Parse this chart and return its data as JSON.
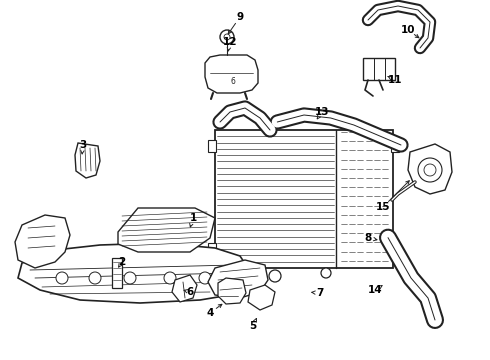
{
  "background_color": "#ffffff",
  "line_color": "#222222",
  "label_color": "#000000",
  "figsize": [
    4.9,
    3.6
  ],
  "dpi": 100,
  "labels": [
    [
      "1",
      193,
      218
    ],
    [
      "2",
      122,
      268
    ],
    [
      "3",
      83,
      148
    ],
    [
      "4",
      208,
      315
    ],
    [
      "5",
      253,
      328
    ],
    [
      "6",
      190,
      295
    ],
    [
      "7",
      320,
      295
    ],
    [
      "8",
      368,
      240
    ],
    [
      "9",
      240,
      18
    ],
    [
      "10",
      408,
      32
    ],
    [
      "11",
      395,
      82
    ],
    [
      "12",
      228,
      42
    ],
    [
      "13",
      322,
      113
    ],
    [
      "14",
      375,
      290
    ],
    [
      "15",
      383,
      210
    ]
  ]
}
